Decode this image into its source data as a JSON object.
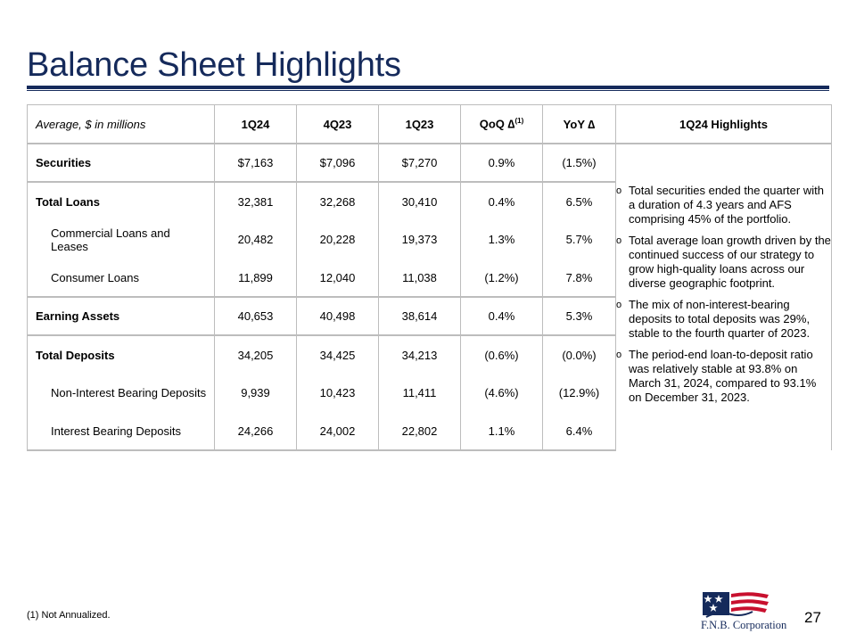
{
  "title": "Balance Sheet Highlights",
  "table": {
    "header": {
      "row_label": "Average, $ in millions",
      "c1": "1Q24",
      "c2": "4Q23",
      "c3": "1Q23",
      "c4": "QoQ ∆",
      "c4_sup": "(1)",
      "c5": "YoY ∆",
      "c6": "1Q24 Highlights"
    },
    "rows": [
      {
        "label": "Securities",
        "v": [
          "$7,163",
          "$7,096",
          "$7,270",
          "0.9%",
          "(1.5%)"
        ]
      },
      {
        "label": "Total Loans",
        "v": [
          "32,381",
          "32,268",
          "30,410",
          "0.4%",
          "6.5%"
        ]
      },
      {
        "label": "Commercial Loans and Leases",
        "v": [
          "20,482",
          "20,228",
          "19,373",
          "1.3%",
          "5.7%"
        ]
      },
      {
        "label": "Consumer Loans",
        "v": [
          "11,899",
          "12,040",
          "11,038",
          "(1.2%)",
          "7.8%"
        ]
      },
      {
        "label": "Earning Assets",
        "v": [
          "40,653",
          "40,498",
          "38,614",
          "0.4%",
          "5.3%"
        ]
      },
      {
        "label": "Total Deposits",
        "v": [
          "34,205",
          "34,425",
          "34,213",
          "(0.6%)",
          "(0.0%)"
        ]
      },
      {
        "label": "Non-Interest Bearing Deposits",
        "v": [
          "9,939",
          "10,423",
          "11,411",
          "(4.6%)",
          "(12.9%)"
        ]
      },
      {
        "label": "Interest Bearing Deposits",
        "v": [
          "24,266",
          "24,002",
          "22,802",
          "1.1%",
          "6.4%"
        ]
      }
    ],
    "highlights": [
      "Total securities ended the quarter with a duration of 4.3 years and AFS comprising 45% of the portfolio.",
      "Total average loan growth driven by the continued success of our strategy to grow high-quality loans across our diverse geographic footprint.",
      "The mix of non-interest-bearing deposits to total deposits was 29%, stable to the fourth quarter of 2023.",
      "The period-end loan-to-deposit ratio was relatively stable at 93.8% on March 31, 2024, compared to 93.1% on December 31, 2023."
    ],
    "bullet_glyph": "o"
  },
  "footnote": "(1) Not Annualized.",
  "logo_text": "F.N.B. Corporation",
  "page_number": "27",
  "colors": {
    "brand_navy": "#152a5b",
    "brand_red": "#c8102e",
    "grid": "#bdbdbd"
  }
}
